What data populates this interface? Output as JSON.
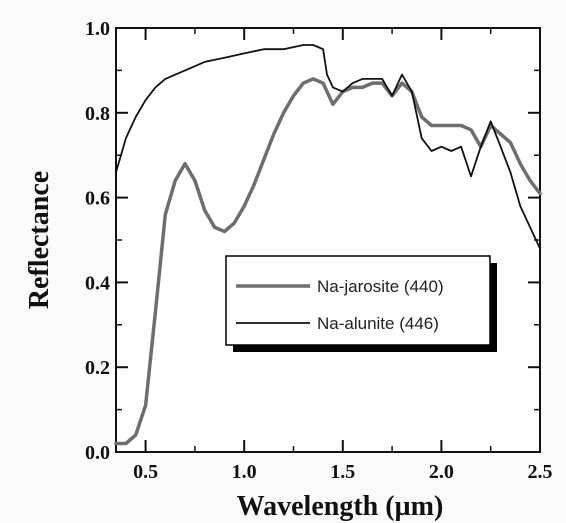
{
  "chart_data": {
    "type": "line",
    "xlabel": "Wavelength (µm)",
    "ylabel": "Reflectance",
    "xlim": [
      0.35,
      2.5
    ],
    "ylim": [
      0.0,
      1.0
    ],
    "x_ticks": [
      {
        "value": 0.5,
        "label": "0.5"
      },
      {
        "value": 1.0,
        "label": "1.0"
      },
      {
        "value": 1.5,
        "label": "1.5"
      },
      {
        "value": 2.0,
        "label": "2.0"
      },
      {
        "value": 2.5,
        "label": "2.5"
      }
    ],
    "y_ticks": [
      {
        "value": 0.0,
        "label": "0.0"
      },
      {
        "value": 0.2,
        "label": "0.2"
      },
      {
        "value": 0.4,
        "label": "0.4"
      },
      {
        "value": 0.6,
        "label": "0.6"
      },
      {
        "value": 0.8,
        "label": "0.8"
      },
      {
        "value": 1.0,
        "label": "1.0"
      }
    ],
    "grid": false,
    "legend_position": "center-right",
    "series": [
      {
        "name": "Na-jarosite (440)",
        "color": "#6e6e6e",
        "x": [
          0.35,
          0.4,
          0.45,
          0.5,
          0.55,
          0.6,
          0.65,
          0.7,
          0.75,
          0.8,
          0.85,
          0.9,
          0.95,
          1.0,
          1.05,
          1.1,
          1.15,
          1.2,
          1.25,
          1.3,
          1.35,
          1.4,
          1.45,
          1.5,
          1.55,
          1.6,
          1.65,
          1.7,
          1.75,
          1.8,
          1.85,
          1.9,
          1.95,
          2.0,
          2.05,
          2.1,
          2.15,
          2.2,
          2.25,
          2.3,
          2.35,
          2.4,
          2.45,
          2.5
        ],
        "values": [
          0.02,
          0.02,
          0.04,
          0.11,
          0.33,
          0.56,
          0.64,
          0.68,
          0.64,
          0.57,
          0.53,
          0.52,
          0.54,
          0.58,
          0.63,
          0.69,
          0.75,
          0.8,
          0.84,
          0.87,
          0.88,
          0.87,
          0.82,
          0.85,
          0.86,
          0.86,
          0.87,
          0.87,
          0.84,
          0.87,
          0.85,
          0.79,
          0.77,
          0.77,
          0.77,
          0.77,
          0.76,
          0.72,
          0.77,
          0.75,
          0.73,
          0.68,
          0.64,
          0.61
        ]
      },
      {
        "name": "Na-alunite (446)",
        "color": "#111111",
        "x": [
          0.35,
          0.4,
          0.45,
          0.5,
          0.55,
          0.6,
          0.7,
          0.8,
          0.9,
          1.0,
          1.1,
          1.2,
          1.3,
          1.35,
          1.4,
          1.42,
          1.45,
          1.5,
          1.55,
          1.6,
          1.7,
          1.75,
          1.8,
          1.85,
          1.9,
          1.95,
          2.0,
          2.05,
          2.1,
          2.15,
          2.2,
          2.25,
          2.3,
          2.35,
          2.4,
          2.45,
          2.5
        ],
        "values": [
          0.66,
          0.74,
          0.79,
          0.83,
          0.86,
          0.88,
          0.9,
          0.92,
          0.93,
          0.94,
          0.95,
          0.95,
          0.96,
          0.96,
          0.95,
          0.89,
          0.86,
          0.85,
          0.87,
          0.88,
          0.88,
          0.84,
          0.89,
          0.85,
          0.74,
          0.71,
          0.72,
          0.71,
          0.72,
          0.65,
          0.72,
          0.78,
          0.72,
          0.66,
          0.58,
          0.53,
          0.48
        ]
      }
    ]
  }
}
